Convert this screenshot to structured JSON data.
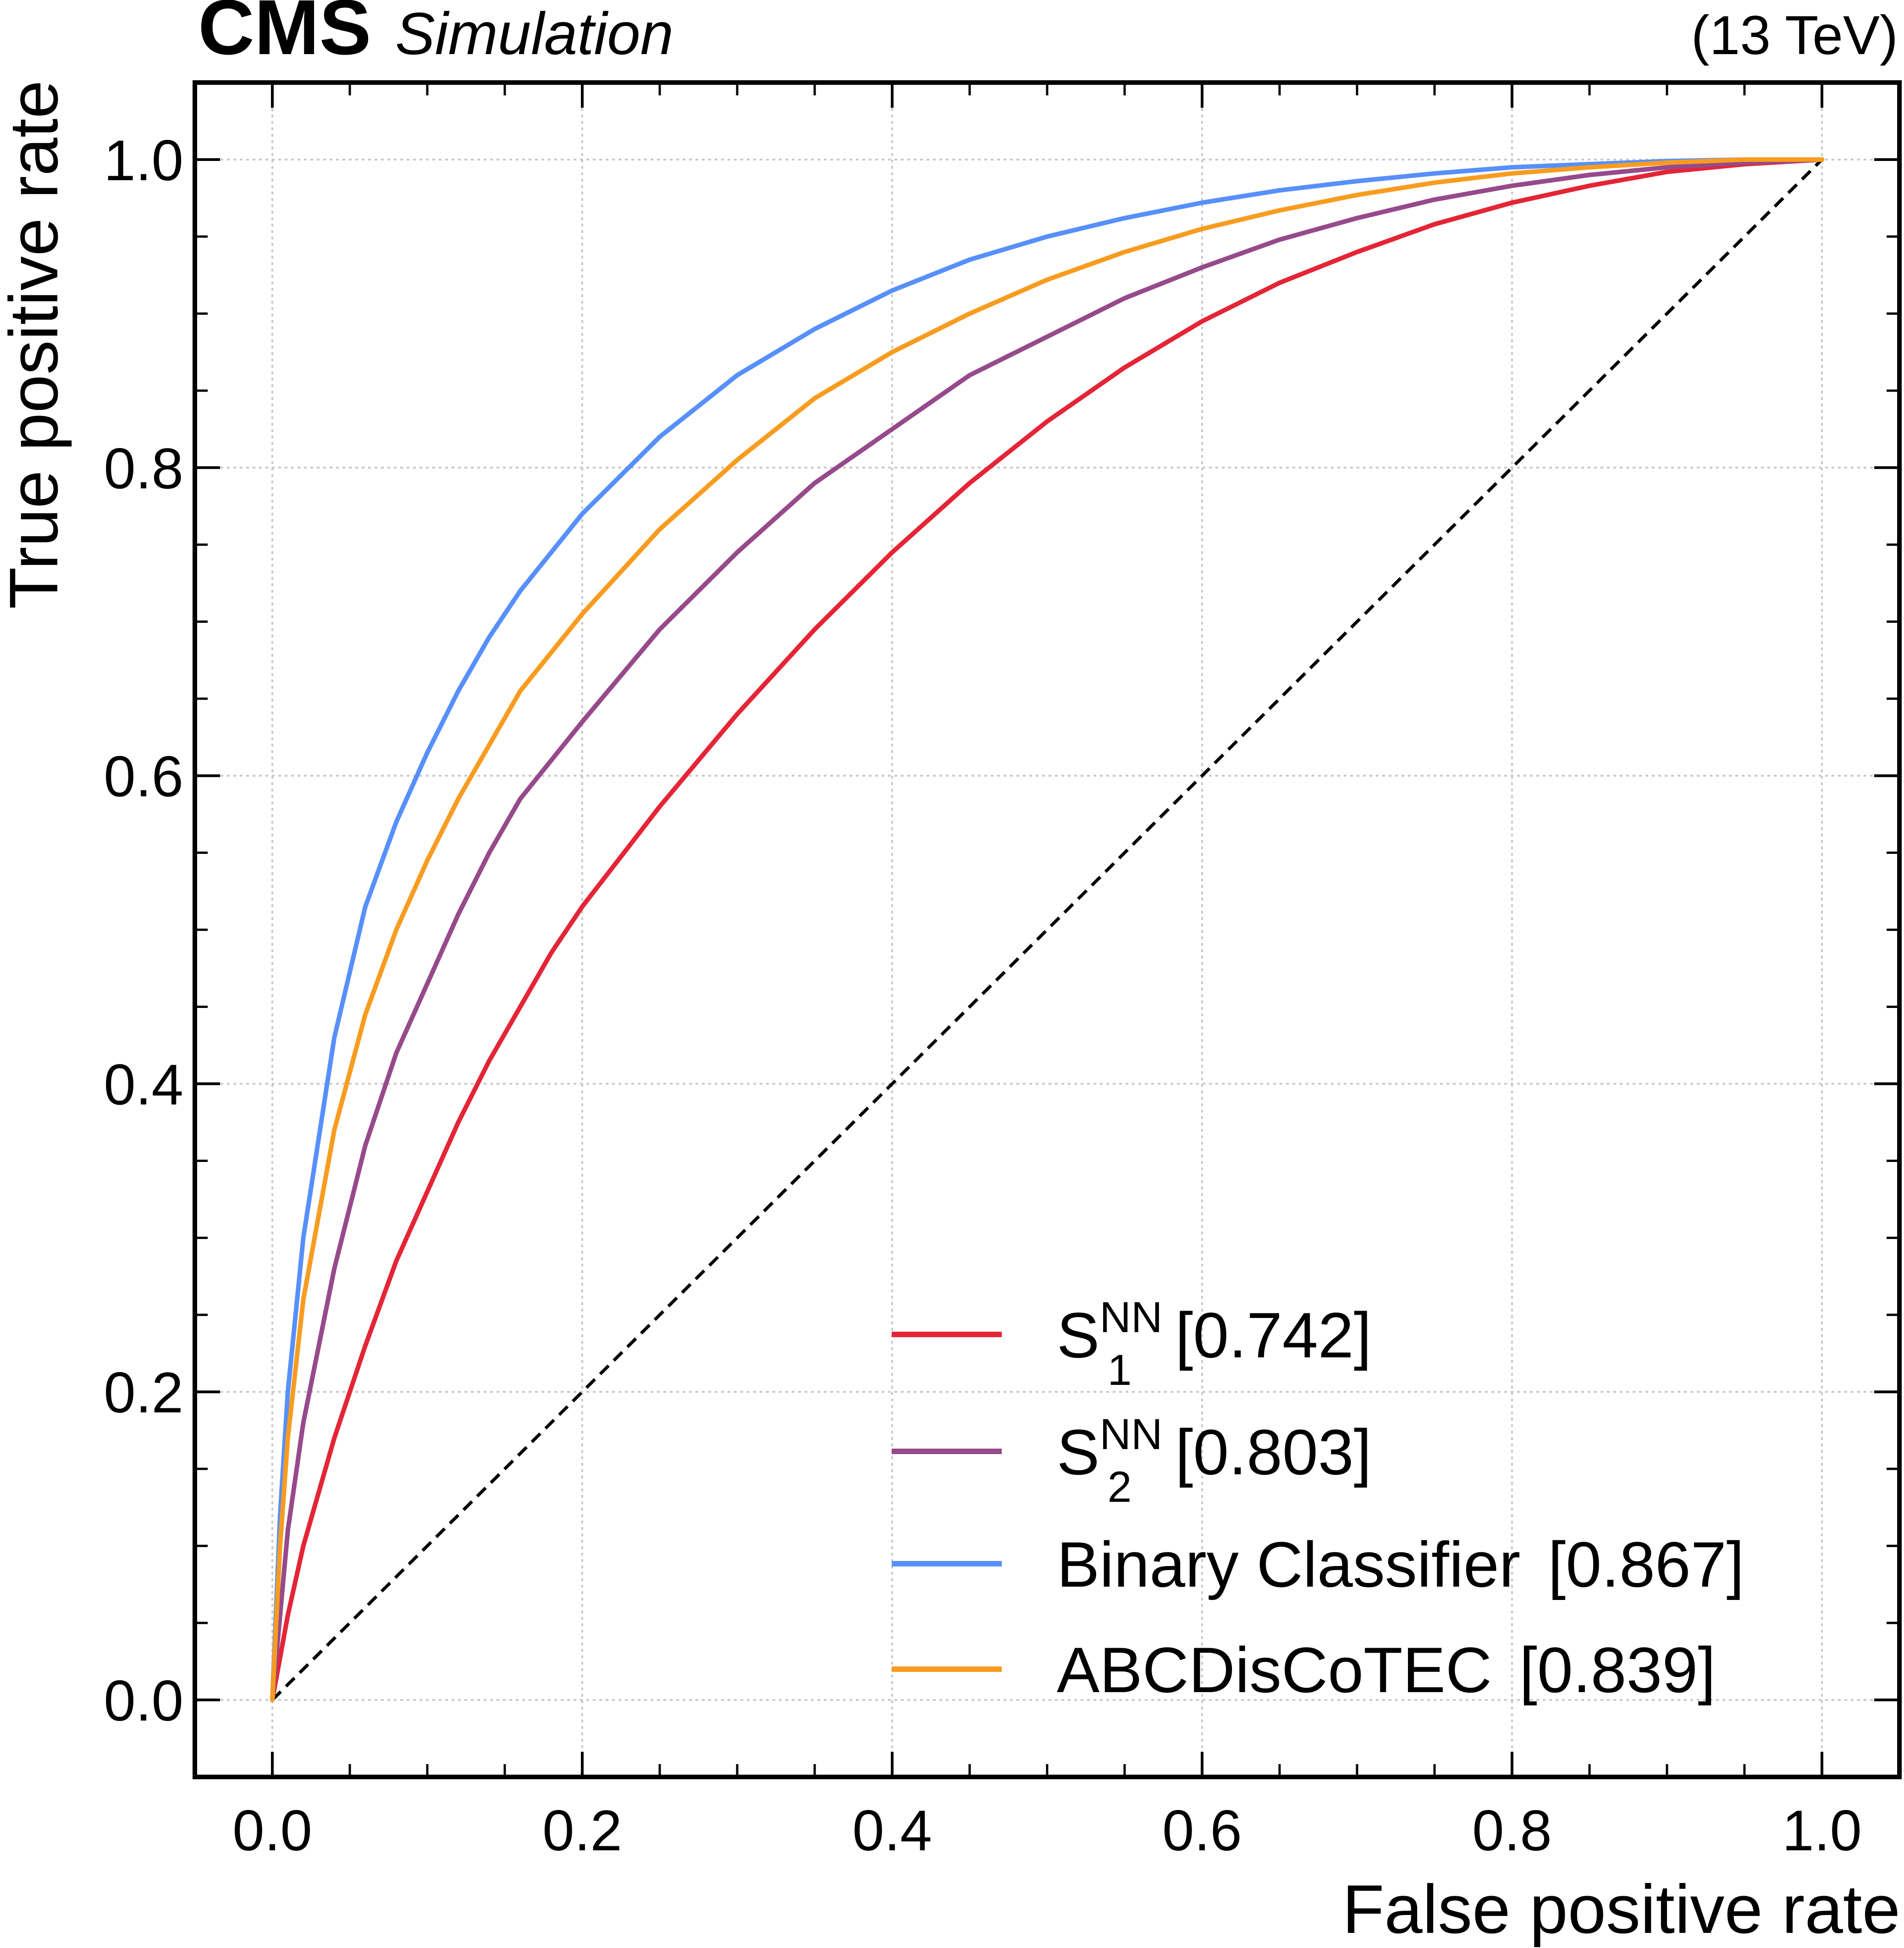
{
  "header": {
    "experiment": "CMS",
    "label": "Simulation",
    "energy": "(13 TeV)"
  },
  "chart_data": {
    "type": "line",
    "xlabel": "False positive rate",
    "ylabel": "True positive rate",
    "xlim": [
      -0.05,
      1.05
    ],
    "ylim": [
      -0.05,
      1.05
    ],
    "xticks": [
      "0.0",
      "0.2",
      "0.4",
      "0.6",
      "0.8",
      "1.0"
    ],
    "yticks": [
      "0.0",
      "0.2",
      "0.4",
      "0.6",
      "0.8",
      "1.0"
    ],
    "grid": true,
    "legend_position": "bottom-right",
    "reference_line": {
      "style": "dashed",
      "color": "#000000",
      "x": [
        0,
        1
      ],
      "y": [
        0,
        1
      ]
    },
    "series": [
      {
        "name": "S",
        "sup": "NN",
        "sub": "1",
        "auc": "[0.742]",
        "color": "#e42536",
        "x": [
          0,
          0.01,
          0.02,
          0.04,
          0.06,
          0.08,
          0.1,
          0.12,
          0.14,
          0.16,
          0.18,
          0.2,
          0.25,
          0.3,
          0.35,
          0.4,
          0.45,
          0.5,
          0.55,
          0.6,
          0.65,
          0.7,
          0.75,
          0.8,
          0.85,
          0.9,
          0.95,
          1.0
        ],
        "y": [
          0,
          0.055,
          0.1,
          0.17,
          0.23,
          0.285,
          0.33,
          0.375,
          0.415,
          0.45,
          0.485,
          0.515,
          0.58,
          0.64,
          0.695,
          0.745,
          0.79,
          0.83,
          0.865,
          0.895,
          0.92,
          0.94,
          0.958,
          0.972,
          0.983,
          0.992,
          0.997,
          1.0
        ]
      },
      {
        "name": "S",
        "sup": "NN",
        "sub": "2",
        "auc": "[0.803]",
        "color": "#964a8b",
        "x": [
          0,
          0.01,
          0.02,
          0.04,
          0.06,
          0.08,
          0.1,
          0.12,
          0.14,
          0.16,
          0.18,
          0.2,
          0.25,
          0.3,
          0.35,
          0.4,
          0.45,
          0.5,
          0.55,
          0.6,
          0.65,
          0.7,
          0.75,
          0.8,
          0.85,
          0.9,
          0.95,
          1.0
        ],
        "y": [
          0,
          0.11,
          0.18,
          0.28,
          0.36,
          0.42,
          0.465,
          0.51,
          0.55,
          0.585,
          0.61,
          0.635,
          0.695,
          0.745,
          0.79,
          0.825,
          0.86,
          0.885,
          0.91,
          0.93,
          0.948,
          0.962,
          0.974,
          0.983,
          0.99,
          0.995,
          0.998,
          1.0
        ]
      },
      {
        "name": "Binary Classifier",
        "auc": "[0.867]",
        "color": "#5790fc",
        "x": [
          0,
          0.005,
          0.01,
          0.02,
          0.04,
          0.06,
          0.08,
          0.1,
          0.12,
          0.14,
          0.16,
          0.18,
          0.2,
          0.25,
          0.3,
          0.35,
          0.4,
          0.45,
          0.5,
          0.55,
          0.6,
          0.65,
          0.7,
          0.75,
          0.8,
          0.85,
          0.9,
          0.95,
          1.0
        ],
        "y": [
          0,
          0.12,
          0.2,
          0.3,
          0.43,
          0.515,
          0.57,
          0.615,
          0.655,
          0.69,
          0.72,
          0.745,
          0.77,
          0.82,
          0.86,
          0.89,
          0.915,
          0.935,
          0.95,
          0.962,
          0.972,
          0.98,
          0.986,
          0.991,
          0.995,
          0.997,
          0.999,
          1.0,
          1.0
        ]
      },
      {
        "name": "ABCDisCoTEC",
        "auc": "[0.839]",
        "color": "#f89c20",
        "x": [
          0,
          0.005,
          0.01,
          0.02,
          0.04,
          0.06,
          0.08,
          0.1,
          0.12,
          0.14,
          0.16,
          0.18,
          0.2,
          0.25,
          0.3,
          0.35,
          0.4,
          0.45,
          0.5,
          0.55,
          0.6,
          0.65,
          0.7,
          0.75,
          0.8,
          0.85,
          0.9,
          0.95,
          1.0
        ],
        "y": [
          0,
          0.1,
          0.17,
          0.26,
          0.37,
          0.445,
          0.5,
          0.545,
          0.585,
          0.62,
          0.655,
          0.68,
          0.705,
          0.76,
          0.805,
          0.845,
          0.875,
          0.9,
          0.922,
          0.94,
          0.955,
          0.967,
          0.977,
          0.985,
          0.991,
          0.995,
          0.998,
          1.0,
          1.0
        ]
      }
    ]
  }
}
